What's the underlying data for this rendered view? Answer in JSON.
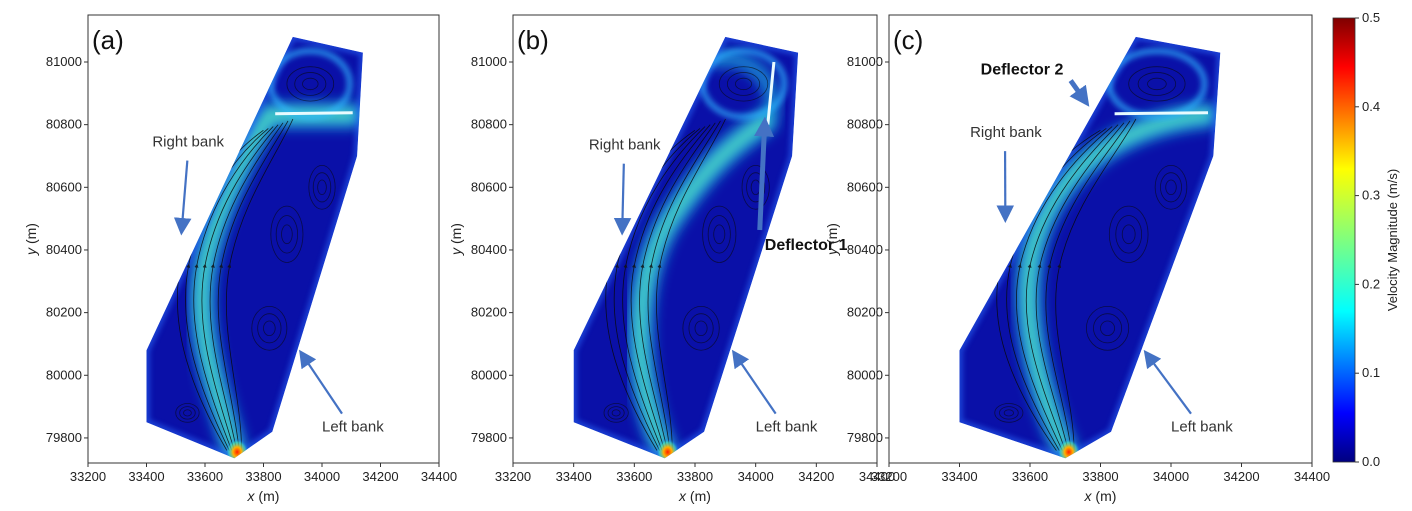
{
  "chart_data": [
    {
      "type": "heatmap",
      "panel_label": "(a)",
      "xlabel": "x (m)",
      "ylabel": "y (m)",
      "xlim": [
        33200,
        34400
      ],
      "ylim": [
        79720,
        81150
      ],
      "xticks": [
        33200,
        33400,
        33600,
        33800,
        34000,
        34200,
        34400
      ],
      "yticks": [
        79800,
        80000,
        80200,
        80400,
        80600,
        80800,
        81000
      ],
      "annotations": [
        {
          "text": "Right bank",
          "x": 33420,
          "y": 80730,
          "arrow_to": [
            33520,
            80460
          ],
          "bold": false
        },
        {
          "text": "Left bank",
          "x": 34000,
          "y": 79820,
          "arrow_to": [
            33930,
            80070
          ],
          "bold": false
        }
      ]
    },
    {
      "type": "heatmap",
      "panel_label": "(b)",
      "xlabel": "x (m)",
      "ylabel": "y (m)",
      "xlim": [
        33200,
        34400
      ],
      "ylim": [
        79720,
        81150
      ],
      "xticks": [
        33200,
        33400,
        33600,
        33800,
        34000,
        34200,
        34400
      ],
      "yticks": [
        79800,
        80000,
        80200,
        80400,
        80600,
        80800,
        81000
      ],
      "annotations": [
        {
          "text": "Right bank",
          "x": 33450,
          "y": 80720,
          "arrow_to": [
            33560,
            80460
          ],
          "bold": false
        },
        {
          "text": "Deflector 1",
          "x": 34030,
          "y": 80400,
          "arrow_to": [
            34030,
            80810
          ],
          "bold": true
        },
        {
          "text": "Left bank",
          "x": 34000,
          "y": 79820,
          "arrow_to": [
            33930,
            80070
          ],
          "bold": false
        }
      ]
    },
    {
      "type": "heatmap",
      "panel_label": "(c)",
      "xlabel": "x (m)",
      "ylabel": "y (m)",
      "xlim": [
        33200,
        34400
      ],
      "ylim": [
        79720,
        81150
      ],
      "xticks": [
        33200,
        33400,
        33600,
        33800,
        34000,
        34200,
        34400
      ],
      "yticks": [
        79800,
        80000,
        80200,
        80400,
        80600,
        80800,
        81000
      ],
      "annotations": [
        {
          "text": "Deflector 2",
          "x": 33460,
          "y": 80960,
          "arrow_to": [
            33760,
            80870
          ],
          "bold": true
        },
        {
          "text": "Right bank",
          "x": 33430,
          "y": 80760,
          "arrow_to": [
            33530,
            80500
          ],
          "bold": false
        },
        {
          "text": "Left bank",
          "x": 34000,
          "y": 79820,
          "arrow_to": [
            33930,
            80070
          ],
          "bold": false
        }
      ]
    }
  ],
  "colorbar": {
    "label": "Velocity Magnitude (m/s)",
    "min": 0.0,
    "max": 0.5,
    "ticks": [
      "0.0",
      "0.1",
      "0.2",
      "0.3",
      "0.4",
      "0.5"
    ],
    "colormap": "jet"
  }
}
